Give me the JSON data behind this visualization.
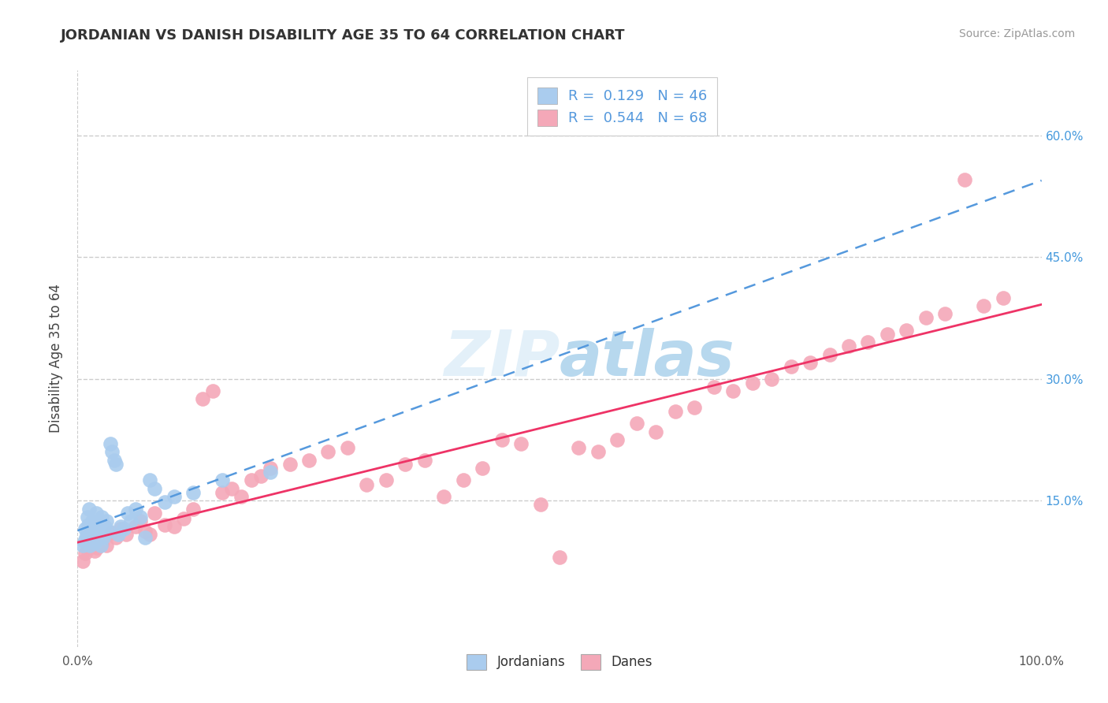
{
  "title": "JORDANIAN VS DANISH DISABILITY AGE 35 TO 64 CORRELATION CHART",
  "source": "Source: ZipAtlas.com",
  "ylabel": "Disability Age 35 to 64",
  "xlim": [
    0.0,
    1.0
  ],
  "ylim": [
    -0.03,
    0.68
  ],
  "jordan_R": 0.129,
  "jordan_N": 46,
  "danish_R": 0.544,
  "danish_N": 68,
  "jordan_color": "#aaccee",
  "danish_color": "#f4a8b8",
  "jordan_line_color": "#5599dd",
  "danish_line_color": "#ee3366",
  "grid_color": "#cccccc",
  "background_color": "#ffffff",
  "ytick_right_color": "#4499dd",
  "ytick_left_visible": false,
  "right_yticks": [
    0.15,
    0.3,
    0.45,
    0.6
  ],
  "right_yticklabels": [
    "15.0%",
    "30.0%",
    "45.0%",
    "60.0%"
  ],
  "jordan_x": [
    0.005,
    0.007,
    0.008,
    0.009,
    0.01,
    0.01,
    0.011,
    0.012,
    0.013,
    0.014,
    0.015,
    0.015,
    0.016,
    0.017,
    0.018,
    0.019,
    0.02,
    0.021,
    0.022,
    0.023,
    0.024,
    0.025,
    0.026,
    0.027,
    0.028,
    0.03,
    0.032,
    0.034,
    0.036,
    0.038,
    0.04,
    0.042,
    0.045,
    0.048,
    0.052,
    0.055,
    0.06,
    0.065,
    0.07,
    0.075,
    0.08,
    0.09,
    0.1,
    0.12,
    0.15,
    0.2
  ],
  "jordan_y": [
    0.095,
    0.1,
    0.115,
    0.105,
    0.11,
    0.13,
    0.12,
    0.14,
    0.095,
    0.108,
    0.118,
    0.125,
    0.1,
    0.112,
    0.098,
    0.135,
    0.102,
    0.115,
    0.108,
    0.122,
    0.095,
    0.13,
    0.11,
    0.105,
    0.118,
    0.125,
    0.112,
    0.22,
    0.21,
    0.2,
    0.195,
    0.108,
    0.118,
    0.115,
    0.135,
    0.125,
    0.14,
    0.13,
    0.105,
    0.175,
    0.165,
    0.148,
    0.155,
    0.16,
    0.175,
    0.185
  ],
  "danish_x": [
    0.005,
    0.008,
    0.01,
    0.012,
    0.015,
    0.018,
    0.02,
    0.025,
    0.03,
    0.035,
    0.04,
    0.045,
    0.05,
    0.06,
    0.065,
    0.07,
    0.075,
    0.08,
    0.09,
    0.1,
    0.11,
    0.12,
    0.13,
    0.14,
    0.15,
    0.16,
    0.17,
    0.18,
    0.19,
    0.2,
    0.22,
    0.24,
    0.26,
    0.28,
    0.3,
    0.32,
    0.34,
    0.36,
    0.38,
    0.4,
    0.42,
    0.44,
    0.46,
    0.48,
    0.5,
    0.52,
    0.54,
    0.56,
    0.58,
    0.6,
    0.62,
    0.64,
    0.66,
    0.68,
    0.7,
    0.72,
    0.74,
    0.76,
    0.78,
    0.8,
    0.82,
    0.84,
    0.86,
    0.88,
    0.9,
    0.92,
    0.94,
    0.96
  ],
  "danish_y": [
    0.075,
    0.085,
    0.09,
    0.095,
    0.1,
    0.088,
    0.092,
    0.098,
    0.095,
    0.11,
    0.105,
    0.115,
    0.108,
    0.118,
    0.125,
    0.112,
    0.108,
    0.135,
    0.12,
    0.118,
    0.128,
    0.14,
    0.275,
    0.285,
    0.16,
    0.165,
    0.155,
    0.175,
    0.18,
    0.19,
    0.195,
    0.2,
    0.21,
    0.215,
    0.17,
    0.175,
    0.195,
    0.2,
    0.155,
    0.175,
    0.19,
    0.225,
    0.22,
    0.145,
    0.08,
    0.215,
    0.21,
    0.225,
    0.245,
    0.235,
    0.26,
    0.265,
    0.29,
    0.285,
    0.295,
    0.3,
    0.315,
    0.32,
    0.33,
    0.34,
    0.345,
    0.355,
    0.36,
    0.375,
    0.38,
    0.545,
    0.39,
    0.4
  ]
}
